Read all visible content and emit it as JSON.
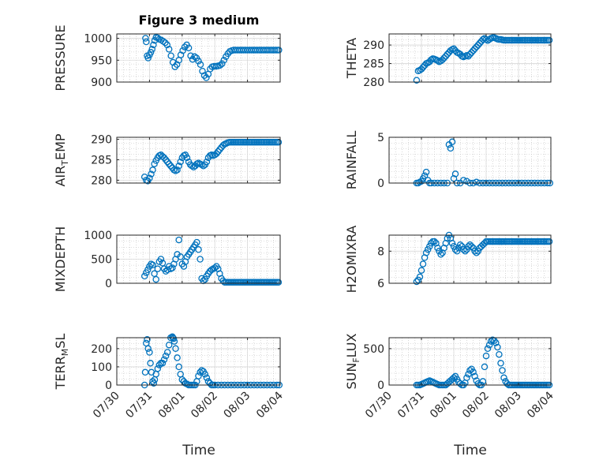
{
  "figure": {
    "title": "Figure 3 medium",
    "xlabel": "Time"
  },
  "colors": {
    "marker": "#0072BD",
    "axis": "#262626",
    "grid": "#bdbdbd"
  },
  "chart_data": [
    {
      "type": "scatter",
      "ylabel": "PRESSURE",
      "xticks": [
        "07/30",
        "07/31",
        "08/01",
        "08/02",
        "08/03",
        "08/04"
      ],
      "yticks": [
        900,
        950,
        1000
      ],
      "ylim": [
        900,
        1010
      ],
      "xlim": [
        0,
        5
      ],
      "grid": true,
      "x": [
        0.88,
        0.9,
        0.93,
        0.96,
        1.0,
        1.04,
        1.08,
        1.12,
        1.16,
        1.2,
        1.25,
        1.3,
        1.36,
        1.42,
        1.48,
        1.54,
        1.6,
        1.66,
        1.72,
        1.78,
        1.84,
        1.9,
        1.96,
        2.02,
        2.08,
        2.14,
        2.2,
        2.26,
        2.32,
        2.38,
        2.44,
        2.5,
        2.56,
        2.62,
        2.68,
        2.74,
        2.8,
        2.86,
        2.92,
        2.98,
        3.04,
        3.1,
        3.16,
        3.22,
        3.28,
        3.34,
        3.4,
        3.46,
        3.52,
        3.58,
        3.64,
        3.7,
        3.76,
        3.82,
        3.88,
        3.94,
        4.0,
        4.06,
        4.12,
        4.18,
        4.24,
        4.3,
        4.36,
        4.42,
        4.48,
        4.54,
        4.6,
        4.66,
        4.72,
        4.78,
        4.84,
        4.9,
        4.96
      ],
      "y": [
        1000,
        992,
        960,
        955,
        962,
        968,
        975,
        985,
        995,
        1002,
        1001,
        998,
        996,
        993,
        990,
        985,
        975,
        960,
        945,
        935,
        940,
        950,
        962,
        972,
        980,
        985,
        978,
        960,
        952,
        958,
        955,
        948,
        940,
        925,
        915,
        910,
        918,
        930,
        935,
        936,
        936,
        937,
        938,
        942,
        950,
        958,
        965,
        970,
        972,
        973,
        973,
        973,
        973,
        973,
        973,
        973,
        973,
        973,
        973,
        973,
        973,
        973,
        973,
        973,
        973,
        973,
        973,
        973,
        973,
        973,
        973,
        973,
        973
      ]
    },
    {
      "type": "scatter",
      "ylabel": "THETA",
      "xticks": [
        "07/30",
        "07/31",
        "08/01",
        "08/02",
        "08/03",
        "08/04"
      ],
      "yticks": [
        280,
        285,
        290
      ],
      "ylim": [
        280,
        293
      ],
      "xlim": [
        0,
        5
      ],
      "grid": true,
      "x": [
        0.85,
        0.9,
        0.95,
        1.0,
        1.05,
        1.1,
        1.15,
        1.2,
        1.25,
        1.3,
        1.35,
        1.4,
        1.45,
        1.5,
        1.55,
        1.6,
        1.65,
        1.7,
        1.75,
        1.8,
        1.85,
        1.9,
        1.95,
        2.0,
        2.05,
        2.1,
        2.15,
        2.2,
        2.25,
        2.3,
        2.35,
        2.4,
        2.45,
        2.5,
        2.55,
        2.6,
        2.65,
        2.7,
        2.75,
        2.8,
        2.85,
        2.9,
        2.95,
        3.0,
        3.05,
        3.1,
        3.15,
        3.2,
        3.25,
        3.3,
        3.35,
        3.4,
        3.45,
        3.5,
        3.55,
        3.6,
        3.65,
        3.7,
        3.75,
        3.8,
        3.85,
        3.9,
        3.95,
        4.0,
        4.05,
        4.1,
        4.15,
        4.2,
        4.25,
        4.3,
        4.35,
        4.4,
        4.45,
        4.5,
        4.55,
        4.6,
        4.65,
        4.7,
        4.75,
        4.8,
        4.85,
        4.9,
        4.95
      ],
      "y": [
        280.5,
        283,
        283.2,
        283.5,
        284,
        284.5,
        285,
        285.2,
        285.5,
        286,
        286.3,
        286.2,
        286,
        285.8,
        285.5,
        285.7,
        286,
        286.5,
        287,
        287.5,
        288,
        288.5,
        288.8,
        289,
        288.5,
        288,
        287.8,
        287.5,
        287,
        286.8,
        287,
        287.2,
        287,
        287.5,
        288,
        288.5,
        289,
        289.5,
        290,
        290.5,
        291,
        291.5,
        291.8,
        291.5,
        291.2,
        291.5,
        291.8,
        292,
        292,
        291.8,
        291.6,
        291.5,
        291.5,
        291.4,
        291.3,
        291.3,
        291.3,
        291.3,
        291.3,
        291.3,
        291.3,
        291.3,
        291.3,
        291.3,
        291.3,
        291.3,
        291.3,
        291.3,
        291.3,
        291.3,
        291.3,
        291.3,
        291.3,
        291.3,
        291.3,
        291.3,
        291.3,
        291.3,
        291.3,
        291.3,
        291.3,
        291.3,
        291.3
      ]
    },
    {
      "type": "scatter",
      "ylabel": "AIR_TEMP",
      "xticks": [
        "07/30",
        "07/31",
        "08/01",
        "08/02",
        "08/03",
        "08/04"
      ],
      "yticks": [
        280,
        285,
        290
      ],
      "ylim": [
        279.3,
        290.5
      ],
      "xlim": [
        0,
        5
      ],
      "grid": true,
      "x": [
        0.85,
        0.9,
        0.95,
        1.0,
        1.05,
        1.1,
        1.15,
        1.2,
        1.25,
        1.3,
        1.35,
        1.4,
        1.45,
        1.5,
        1.55,
        1.6,
        1.65,
        1.7,
        1.75,
        1.8,
        1.85,
        1.9,
        1.95,
        2.0,
        2.05,
        2.1,
        2.15,
        2.2,
        2.25,
        2.3,
        2.35,
        2.4,
        2.45,
        2.5,
        2.55,
        2.6,
        2.65,
        2.7,
        2.75,
        2.8,
        2.85,
        2.9,
        2.95,
        3.0,
        3.05,
        3.1,
        3.15,
        3.2,
        3.25,
        3.3,
        3.35,
        3.4,
        3.45,
        3.5,
        3.55,
        3.6,
        3.65,
        3.7,
        3.75,
        3.8,
        3.85,
        3.9,
        3.95,
        4.0,
        4.05,
        4.1,
        4.15,
        4.2,
        4.25,
        4.3,
        4.35,
        4.4,
        4.45,
        4.5,
        4.55,
        4.6,
        4.65,
        4.7,
        4.75,
        4.8,
        4.85,
        4.9,
        4.95
      ],
      "y": [
        280.8,
        280,
        279.8,
        280.5,
        281.5,
        282.5,
        284,
        284.8,
        285.5,
        286,
        286.2,
        285.8,
        285.5,
        285,
        284.5,
        284,
        283.5,
        283,
        282.5,
        282.3,
        282.5,
        283.5,
        284.5,
        285.5,
        286,
        286.2,
        285.5,
        284.5,
        283.8,
        283.5,
        283.2,
        283.5,
        284,
        284.2,
        284,
        283.8,
        283.5,
        283.8,
        284.5,
        285.5,
        286,
        286.2,
        286,
        286.2,
        286.5,
        287,
        287.5,
        288,
        288.5,
        288.8,
        289,
        289.2,
        289.3,
        289.3,
        289.3,
        289.3,
        289.3,
        289.3,
        289.3,
        289.3,
        289.3,
        289.3,
        289.3,
        289.3,
        289.3,
        289.3,
        289.3,
        289.3,
        289.3,
        289.3,
        289.3,
        289.3,
        289.3,
        289.3,
        289.3,
        289.3,
        289.3,
        289.3,
        289.3,
        289.3,
        289.3,
        289.3,
        289.3
      ]
    },
    {
      "type": "scatter",
      "ylabel": "RAINFALL",
      "xticks": [
        "07/30",
        "07/31",
        "08/01",
        "08/02",
        "08/03",
        "08/04"
      ],
      "yticks": [
        0,
        5
      ],
      "ylim": [
        0,
        5
      ],
      "xlim": [
        0,
        5
      ],
      "grid": true,
      "x": [
        0.85,
        0.9,
        0.95,
        1.0,
        1.05,
        1.1,
        1.15,
        1.2,
        1.25,
        1.3,
        1.4,
        1.5,
        1.6,
        1.7,
        1.8,
        1.85,
        1.9,
        1.95,
        2.0,
        2.05,
        2.1,
        2.2,
        2.3,
        2.4,
        2.5,
        2.6,
        2.7,
        2.8,
        2.9,
        3.0,
        3.1,
        3.2,
        3.3,
        3.4,
        3.5,
        3.6,
        3.7,
        3.8,
        3.9,
        4.0,
        4.1,
        4.2,
        4.3,
        4.4,
        4.5,
        4.6,
        4.7,
        4.8,
        4.9,
        4.97
      ],
      "y": [
        0,
        0,
        0.1,
        0.2,
        0.5,
        0.8,
        1.2,
        0.3,
        0,
        0,
        0,
        0,
        0,
        0,
        0,
        4.2,
        3.8,
        4.5,
        0.5,
        1.0,
        0,
        0,
        0.3,
        0.2,
        0,
        0,
        0.1,
        0,
        0,
        0,
        0,
        0,
        0,
        0,
        0,
        0,
        0,
        0,
        0,
        0,
        0,
        0,
        0,
        0,
        0,
        0,
        0,
        0,
        0,
        0
      ]
    },
    {
      "type": "scatter",
      "ylabel": "MIXDEPTH",
      "xticks": [
        "07/30",
        "07/31",
        "08/01",
        "08/02",
        "08/03",
        "08/04"
      ],
      "yticks": [
        0,
        500,
        1000
      ],
      "ylim": [
        0,
        1000
      ],
      "xlim": [
        0,
        5
      ],
      "grid": true,
      "x": [
        0.85,
        0.9,
        0.95,
        1.0,
        1.05,
        1.1,
        1.15,
        1.2,
        1.25,
        1.3,
        1.35,
        1.4,
        1.45,
        1.5,
        1.55,
        1.6,
        1.65,
        1.7,
        1.75,
        1.8,
        1.85,
        1.9,
        1.95,
        2.0,
        2.05,
        2.1,
        2.15,
        2.2,
        2.25,
        2.3,
        2.35,
        2.4,
        2.45,
        2.5,
        2.55,
        2.6,
        2.65,
        2.7,
        2.75,
        2.8,
        2.85,
        2.9,
        2.95,
        3.0,
        3.05,
        3.1,
        3.15,
        3.2,
        3.25,
        3.3,
        3.35,
        3.4,
        3.45,
        3.5,
        3.55,
        3.6,
        3.65,
        3.7,
        3.75,
        3.8,
        3.85,
        3.9,
        3.95,
        4.0,
        4.05,
        4.1,
        4.15,
        4.2,
        4.25,
        4.3,
        4.35,
        4.4,
        4.45,
        4.5,
        4.55,
        4.6,
        4.65,
        4.7,
        4.75,
        4.8,
        4.85,
        4.9,
        4.95
      ],
      "y": [
        150,
        220,
        280,
        350,
        400,
        380,
        200,
        80,
        300,
        450,
        500,
        420,
        300,
        250,
        280,
        350,
        300,
        320,
        400,
        500,
        600,
        900,
        550,
        400,
        350,
        450,
        550,
        600,
        650,
        700,
        750,
        800,
        850,
        700,
        500,
        100,
        50,
        80,
        150,
        200,
        250,
        280,
        300,
        320,
        350,
        300,
        200,
        100,
        50,
        20,
        20,
        20,
        20,
        20,
        20,
        20,
        20,
        20,
        20,
        20,
        20,
        20,
        20,
        20,
        20,
        20,
        20,
        20,
        20,
        20,
        20,
        20,
        20,
        20,
        20,
        20,
        20,
        20,
        20,
        20,
        20,
        20,
        20
      ]
    },
    {
      "type": "scatter",
      "ylabel": "H2OMIXRA",
      "xticks": [
        "07/30",
        "07/31",
        "08/01",
        "08/02",
        "08/03",
        "08/04"
      ],
      "yticks": [
        6,
        8
      ],
      "ylim": [
        6,
        9
      ],
      "xlim": [
        0,
        5
      ],
      "grid": true,
      "x": [
        0.85,
        0.9,
        0.95,
        1.0,
        1.05,
        1.1,
        1.15,
        1.2,
        1.25,
        1.3,
        1.35,
        1.4,
        1.45,
        1.5,
        1.55,
        1.6,
        1.65,
        1.7,
        1.75,
        1.8,
        1.85,
        1.9,
        1.95,
        2.0,
        2.05,
        2.1,
        2.15,
        2.2,
        2.25,
        2.3,
        2.35,
        2.4,
        2.45,
        2.5,
        2.55,
        2.6,
        2.65,
        2.7,
        2.75,
        2.8,
        2.85,
        2.9,
        2.95,
        3.0,
        3.05,
        3.1,
        3.15,
        3.2,
        3.25,
        3.3,
        3.35,
        3.4,
        3.45,
        3.5,
        3.55,
        3.6,
        3.65,
        3.7,
        3.75,
        3.8,
        3.85,
        3.9,
        3.95,
        4.0,
        4.05,
        4.1,
        4.15,
        4.2,
        4.25,
        4.3,
        4.35,
        4.4,
        4.45,
        4.5,
        4.55,
        4.6,
        4.65,
        4.7,
        4.75,
        4.8,
        4.85,
        4.9,
        4.95
      ],
      "y": [
        6.1,
        6.2,
        6.4,
        6.8,
        7.2,
        7.6,
        7.9,
        8.1,
        8.3,
        8.5,
        8.6,
        8.6,
        8.5,
        8.2,
        8.0,
        7.8,
        7.9,
        8.2,
        8.5,
        8.8,
        9.0,
        8.8,
        8.5,
        8.3,
        8.1,
        8.0,
        8.2,
        8.4,
        8.3,
        8.1,
        8.0,
        8.1,
        8.3,
        8.4,
        8.3,
        8.2,
        8.0,
        7.9,
        8.0,
        8.2,
        8.3,
        8.4,
        8.5,
        8.6,
        8.6,
        8.6,
        8.6,
        8.6,
        8.6,
        8.6,
        8.6,
        8.6,
        8.6,
        8.6,
        8.6,
        8.6,
        8.6,
        8.6,
        8.6,
        8.6,
        8.6,
        8.6,
        8.6,
        8.6,
        8.6,
        8.6,
        8.6,
        8.6,
        8.6,
        8.6,
        8.6,
        8.6,
        8.6,
        8.6,
        8.6,
        8.6,
        8.6,
        8.6,
        8.6,
        8.6,
        8.6,
        8.6,
        8.6
      ]
    },
    {
      "type": "scatter",
      "ylabel": "TERR_MSL",
      "xticks": [
        "07/30",
        "07/31",
        "08/01",
        "08/02",
        "08/03",
        "08/04"
      ],
      "yticks": [
        0,
        100,
        200
      ],
      "ylim": [
        0,
        260
      ],
      "xlim": [
        0,
        5
      ],
      "grid": true,
      "x": [
        0.85,
        0.87,
        0.9,
        0.93,
        0.96,
        1.0,
        1.03,
        1.06,
        1.1,
        1.13,
        1.16,
        1.2,
        1.25,
        1.3,
        1.35,
        1.4,
        1.45,
        1.5,
        1.55,
        1.6,
        1.65,
        1.7,
        1.72,
        1.74,
        1.76,
        1.8,
        1.85,
        1.9,
        1.95,
        2.0,
        2.05,
        2.1,
        2.15,
        2.2,
        2.25,
        2.3,
        2.35,
        2.4,
        2.45,
        2.5,
        2.55,
        2.6,
        2.65,
        2.7,
        2.75,
        2.8,
        2.85,
        2.9,
        2.95,
        3.0,
        3.1,
        3.2,
        3.3,
        3.4,
        3.5,
        3.6,
        3.7,
        3.8,
        3.9,
        4.0,
        4.1,
        4.2,
        4.3,
        4.4,
        4.5,
        4.6,
        4.7,
        4.8,
        4.9,
        4.97
      ],
      "y": [
        0,
        70,
        230,
        250,
        200,
        180,
        120,
        70,
        20,
        10,
        30,
        60,
        90,
        110,
        120,
        120,
        140,
        160,
        180,
        220,
        260,
        265,
        260,
        255,
        240,
        200,
        150,
        100,
        60,
        30,
        20,
        10,
        5,
        0,
        0,
        0,
        0,
        0,
        20,
        50,
        70,
        80,
        75,
        60,
        40,
        20,
        10,
        0,
        0,
        0,
        0,
        0,
        0,
        0,
        0,
        0,
        0,
        0,
        0,
        0,
        0,
        0,
        0,
        0,
        0,
        0,
        0,
        0,
        0,
        0
      ]
    },
    {
      "type": "scatter",
      "ylabel": "SUN_FLUX",
      "xticks": [
        "07/30",
        "07/31",
        "08/01",
        "08/02",
        "08/03",
        "08/04"
      ],
      "yticks": [
        0,
        500
      ],
      "ylim": [
        0,
        650
      ],
      "xlim": [
        0,
        5
      ],
      "grid": true,
      "x": [
        0.85,
        0.9,
        0.95,
        1.0,
        1.05,
        1.1,
        1.15,
        1.2,
        1.25,
        1.3,
        1.35,
        1.4,
        1.45,
        1.5,
        1.55,
        1.6,
        1.65,
        1.7,
        1.75,
        1.8,
        1.85,
        1.9,
        1.95,
        2.0,
        2.05,
        2.1,
        2.15,
        2.2,
        2.25,
        2.3,
        2.35,
        2.4,
        2.45,
        2.5,
        2.55,
        2.6,
        2.65,
        2.7,
        2.75,
        2.8,
        2.85,
        2.9,
        2.95,
        3.0,
        3.05,
        3.1,
        3.15,
        3.2,
        3.25,
        3.3,
        3.35,
        3.4,
        3.45,
        3.5,
        3.55,
        3.6,
        3.65,
        3.7,
        3.75,
        3.8,
        3.85,
        3.9,
        3.95,
        4.0,
        4.05,
        4.1,
        4.15,
        4.2,
        4.25,
        4.3,
        4.35,
        4.4,
        4.45,
        4.5,
        4.55,
        4.6,
        4.65,
        4.7,
        4.75,
        4.8,
        4.85,
        4.9,
        4.95
      ],
      "y": [
        0,
        0,
        0,
        10,
        20,
        30,
        40,
        50,
        60,
        50,
        40,
        30,
        20,
        10,
        0,
        0,
        0,
        0,
        0,
        20,
        40,
        60,
        80,
        100,
        120,
        80,
        40,
        20,
        0,
        0,
        30,
        100,
        150,
        200,
        220,
        180,
        120,
        60,
        20,
        0,
        0,
        50,
        250,
        400,
        500,
        550,
        600,
        620,
        610,
        580,
        520,
        420,
        300,
        200,
        100,
        50,
        20,
        0,
        0,
        0,
        0,
        0,
        0,
        0,
        0,
        0,
        0,
        0,
        0,
        0,
        0,
        0,
        0,
        0,
        0,
        0,
        0,
        0,
        0,
        0,
        0,
        0,
        0
      ]
    }
  ]
}
